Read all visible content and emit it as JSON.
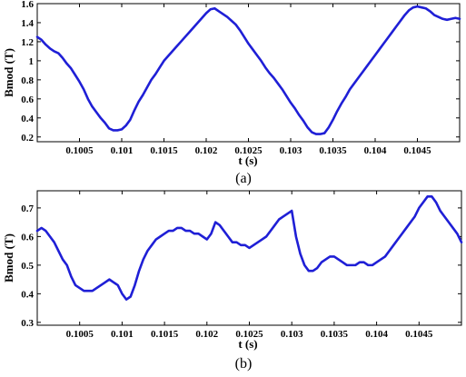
{
  "chart_data": [
    {
      "type": "line",
      "panel_label": "(a)",
      "xlabel": "t (s)",
      "ylabel": "Bmod (T)",
      "xlim": [
        0.1,
        0.105
      ],
      "ylim": [
        0.15,
        1.6
      ],
      "x_ticks": [
        0.1005,
        0.101,
        0.1015,
        0.102,
        0.1025,
        0.103,
        0.1035,
        0.104,
        0.1045
      ],
      "x_tick_labels": [
        "0.1005",
        "0.101",
        "0.1015",
        "0.102",
        "0.1025",
        "0.103",
        "0.1035",
        "0.104",
        "0.1045"
      ],
      "y_ticks": [
        0.2,
        0.4,
        0.6,
        0.8,
        1.0,
        1.2,
        1.4,
        1.6
      ],
      "y_tick_labels": [
        "0.2",
        "0.4",
        "0.6",
        "0.8",
        "1",
        "1.2",
        "1.4",
        "1.6"
      ],
      "color": "#1f1fd6",
      "series": [
        {
          "x": [
            0.1,
            0.10005,
            0.1001,
            0.10015,
            0.1002,
            0.10025,
            0.1003,
            0.10035,
            0.1004,
            0.10045,
            0.1005,
            0.10055,
            0.1006,
            0.10065,
            0.1007,
            0.10075,
            0.1008,
            0.10085,
            0.1009,
            0.10095,
            0.101,
            0.10105,
            0.1011,
            0.10115,
            0.1012,
            0.10125,
            0.1013,
            0.10135,
            0.1014,
            0.10145,
            0.1015,
            0.10155,
            0.1016,
            0.10165,
            0.1017,
            0.10175,
            0.1018,
            0.10185,
            0.1019,
            0.10195,
            0.102,
            0.10205,
            0.1021,
            0.10215,
            0.1022,
            0.10225,
            0.1023,
            0.10235,
            0.1024,
            0.10245,
            0.1025,
            0.10255,
            0.1026,
            0.10265,
            0.1027,
            0.10275,
            0.1028,
            0.10285,
            0.1029,
            0.10295,
            0.103,
            0.10305,
            0.1031,
            0.10315,
            0.1032,
            0.10325,
            0.1033,
            0.10335,
            0.1034,
            0.10345,
            0.1035,
            0.10355,
            0.1036,
            0.10365,
            0.1037,
            0.10375,
            0.1038,
            0.10385,
            0.1039,
            0.10395,
            0.104,
            0.10405,
            0.1041,
            0.10415,
            0.1042,
            0.10425,
            0.1043,
            0.10435,
            0.1044,
            0.10445,
            0.1045,
            0.10455,
            0.1046,
            0.10465,
            0.1047,
            0.10475,
            0.1048,
            0.10485,
            0.1049,
            0.10495,
            0.105
          ],
          "y": [
            1.25,
            1.22,
            1.17,
            1.13,
            1.1,
            1.08,
            1.03,
            0.97,
            0.92,
            0.85,
            0.78,
            0.7,
            0.6,
            0.52,
            0.46,
            0.4,
            0.35,
            0.29,
            0.27,
            0.27,
            0.28,
            0.32,
            0.38,
            0.48,
            0.57,
            0.64,
            0.72,
            0.8,
            0.86,
            0.93,
            1.0,
            1.05,
            1.1,
            1.15,
            1.2,
            1.25,
            1.3,
            1.35,
            1.4,
            1.45,
            1.5,
            1.54,
            1.55,
            1.52,
            1.49,
            1.46,
            1.42,
            1.38,
            1.32,
            1.25,
            1.18,
            1.12,
            1.06,
            1.0,
            0.93,
            0.87,
            0.82,
            0.76,
            0.7,
            0.63,
            0.56,
            0.5,
            0.43,
            0.37,
            0.3,
            0.25,
            0.23,
            0.23,
            0.24,
            0.3,
            0.38,
            0.47,
            0.55,
            0.62,
            0.7,
            0.76,
            0.82,
            0.88,
            0.94,
            1.0,
            1.06,
            1.12,
            1.18,
            1.24,
            1.3,
            1.36,
            1.42,
            1.48,
            1.53,
            1.56,
            1.57,
            1.56,
            1.55,
            1.52,
            1.48,
            1.46,
            1.44,
            1.43,
            1.44,
            1.45,
            1.44
          ]
        }
      ]
    },
    {
      "type": "line",
      "panel_label": "(b)",
      "xlabel": "t (s)",
      "ylabel": "Bmod (T)",
      "xlim": [
        0.1,
        0.105
      ],
      "ylim": [
        0.29,
        0.76
      ],
      "x_ticks": [
        0.1005,
        0.101,
        0.1015,
        0.102,
        0.1025,
        0.103,
        0.1035,
        0.104,
        0.1045
      ],
      "x_tick_labels": [
        "0.1005",
        "0.101",
        "0.1015",
        "0.102",
        "0.1025",
        "0.103",
        "0.1035",
        "0.104",
        "0.1045"
      ],
      "y_ticks": [
        0.3,
        0.4,
        0.5,
        0.6,
        0.7
      ],
      "y_tick_labels": [
        "0.3",
        "0.4",
        "0.5",
        "0.6",
        "0.7"
      ],
      "color": "#1f1fd6",
      "series": [
        {
          "x": [
            0.1,
            0.10005,
            0.1001,
            0.10015,
            0.1002,
            0.10025,
            0.1003,
            0.10035,
            0.1004,
            0.10045,
            0.1005,
            0.10055,
            0.1006,
            0.10065,
            0.1007,
            0.10075,
            0.1008,
            0.10085,
            0.1009,
            0.10095,
            0.101,
            0.10105,
            0.1011,
            0.10115,
            0.1012,
            0.10125,
            0.1013,
            0.10135,
            0.1014,
            0.10145,
            0.1015,
            0.10155,
            0.1016,
            0.10165,
            0.1017,
            0.10175,
            0.1018,
            0.10185,
            0.1019,
            0.10195,
            0.102,
            0.10205,
            0.1021,
            0.10215,
            0.1022,
            0.10225,
            0.1023,
            0.10235,
            0.1024,
            0.10245,
            0.1025,
            0.10255,
            0.1026,
            0.10265,
            0.1027,
            0.10275,
            0.1028,
            0.10285,
            0.1029,
            0.10295,
            0.103,
            0.10305,
            0.1031,
            0.10315,
            0.1032,
            0.10325,
            0.1033,
            0.10335,
            0.1034,
            0.10345,
            0.1035,
            0.10355,
            0.1036,
            0.10365,
            0.1037,
            0.10375,
            0.1038,
            0.10385,
            0.1039,
            0.10395,
            0.104,
            0.10405,
            0.1041,
            0.10415,
            0.1042,
            0.10425,
            0.1043,
            0.10435,
            0.1044,
            0.10445,
            0.1045,
            0.10455,
            0.1046,
            0.10465,
            0.1047,
            0.10475,
            0.1048,
            0.10485,
            0.1049,
            0.10495,
            0.105
          ],
          "y": [
            0.62,
            0.63,
            0.62,
            0.6,
            0.58,
            0.55,
            0.52,
            0.5,
            0.46,
            0.43,
            0.42,
            0.41,
            0.41,
            0.41,
            0.42,
            0.43,
            0.44,
            0.45,
            0.44,
            0.43,
            0.4,
            0.38,
            0.39,
            0.43,
            0.48,
            0.52,
            0.55,
            0.57,
            0.59,
            0.6,
            0.61,
            0.62,
            0.62,
            0.63,
            0.63,
            0.62,
            0.62,
            0.61,
            0.61,
            0.6,
            0.59,
            0.61,
            0.65,
            0.64,
            0.62,
            0.6,
            0.58,
            0.58,
            0.57,
            0.57,
            0.56,
            0.57,
            0.58,
            0.59,
            0.6,
            0.62,
            0.64,
            0.66,
            0.67,
            0.68,
            0.69,
            0.6,
            0.54,
            0.5,
            0.48,
            0.48,
            0.49,
            0.51,
            0.52,
            0.53,
            0.53,
            0.52,
            0.51,
            0.5,
            0.5,
            0.5,
            0.51,
            0.51,
            0.5,
            0.5,
            0.51,
            0.52,
            0.53,
            0.55,
            0.57,
            0.59,
            0.61,
            0.63,
            0.65,
            0.67,
            0.7,
            0.72,
            0.74,
            0.74,
            0.72,
            0.69,
            0.67,
            0.65,
            0.63,
            0.61,
            0.58
          ]
        }
      ]
    }
  ]
}
